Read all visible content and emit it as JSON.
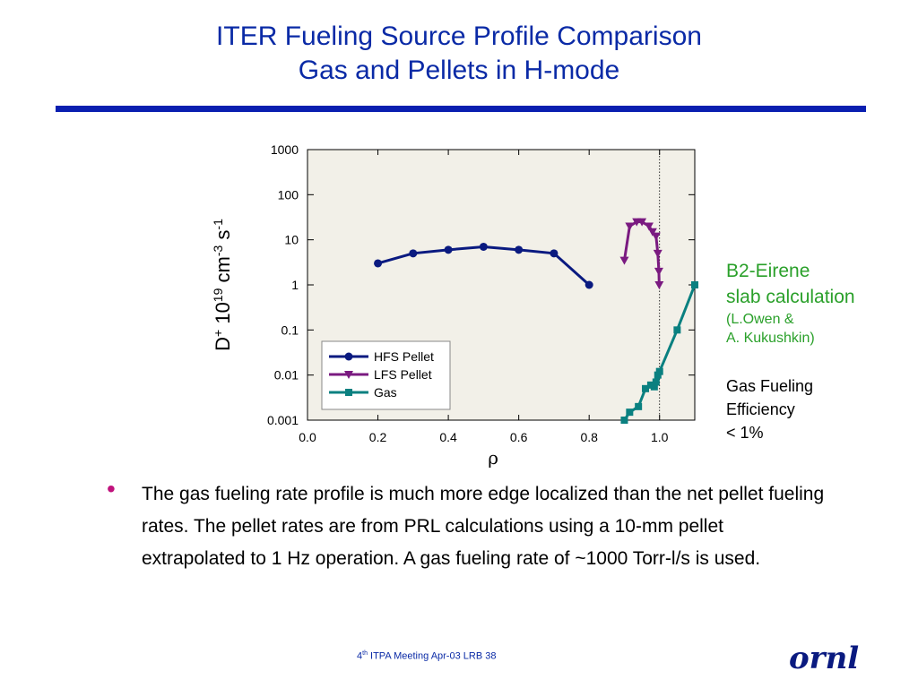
{
  "slide": {
    "title_line1": "ITER Fueling Source Profile Comparison",
    "title_line2": "Gas and Pellets in H-mode",
    "side_b2_line1": "B2-Eirene",
    "side_b2_line2": "slab calculation",
    "side_authors_line1": "(L.Owen &",
    "side_authors_line2": "A. Kukushkin)",
    "side_eff_line1": "Gas Fueling",
    "side_eff_line2": "Efficiency",
    "side_eff_line3": "< 1%",
    "bullet_text": "The gas fueling rate profile is much more edge localized than the net pellet fueling rates. The pellet rates are from PRL calculations using  a 10-mm pellet extrapolated to 1 Hz operation.  A gas fueling rate of ~1000 Torr-l/s is used.",
    "footer_ordinal": "4",
    "footer_sup": "th",
    "footer_rest": " ITPA Meeting  Apr-03   LRB     38",
    "logo_text": "ornl"
  },
  "colors": {
    "title": "#0a2aa6",
    "hfs": "#0a1a80",
    "lfs": "#7a1a80",
    "gas": "#0a8080",
    "plot_bg": "#f2f0e8",
    "green_text": "#2aa02a",
    "bullet": "#c0127c"
  },
  "chart_data": {
    "type": "line",
    "xlabel": "ρ",
    "ylabel": "D+ 10^19 cm^-3 s^-1",
    "xlim": [
      0.0,
      1.1
    ],
    "ylim": [
      0.001,
      1000
    ],
    "yscale": "log",
    "x_ticks": [
      "0.0",
      "0.2",
      "0.4",
      "0.6",
      "0.8",
      "1.0"
    ],
    "y_ticks": [
      "1000",
      "100",
      "10",
      "1",
      "0.1",
      "0.01",
      "0.001"
    ],
    "separatrix_x": 1.0,
    "legend_position": "bottom-left",
    "series": [
      {
        "name": "HFS Pellet",
        "marker": "circle",
        "x": [
          0.2,
          0.3,
          0.4,
          0.5,
          0.6,
          0.7,
          0.8
        ],
        "y": [
          3.0,
          5.0,
          6.0,
          7.0,
          6.0,
          5.0,
          1.0
        ]
      },
      {
        "name": "LFS Pellet",
        "marker": "triangle-down",
        "x": [
          0.9,
          0.915,
          0.935,
          0.95,
          0.97,
          0.98,
          0.99,
          0.995,
          0.998,
          0.999
        ],
        "y": [
          3.5,
          20,
          25,
          25,
          20,
          15,
          12,
          5,
          2,
          1
        ]
      },
      {
        "name": "Gas",
        "marker": "square",
        "x": [
          0.9,
          0.915,
          0.94,
          0.96,
          0.975,
          0.985,
          0.99,
          0.995,
          1.0,
          1.05,
          1.1
        ],
        "y": [
          0.001,
          0.0015,
          0.002,
          0.005,
          0.006,
          0.0055,
          0.007,
          0.01,
          0.012,
          0.1,
          1.0
        ]
      }
    ]
  }
}
